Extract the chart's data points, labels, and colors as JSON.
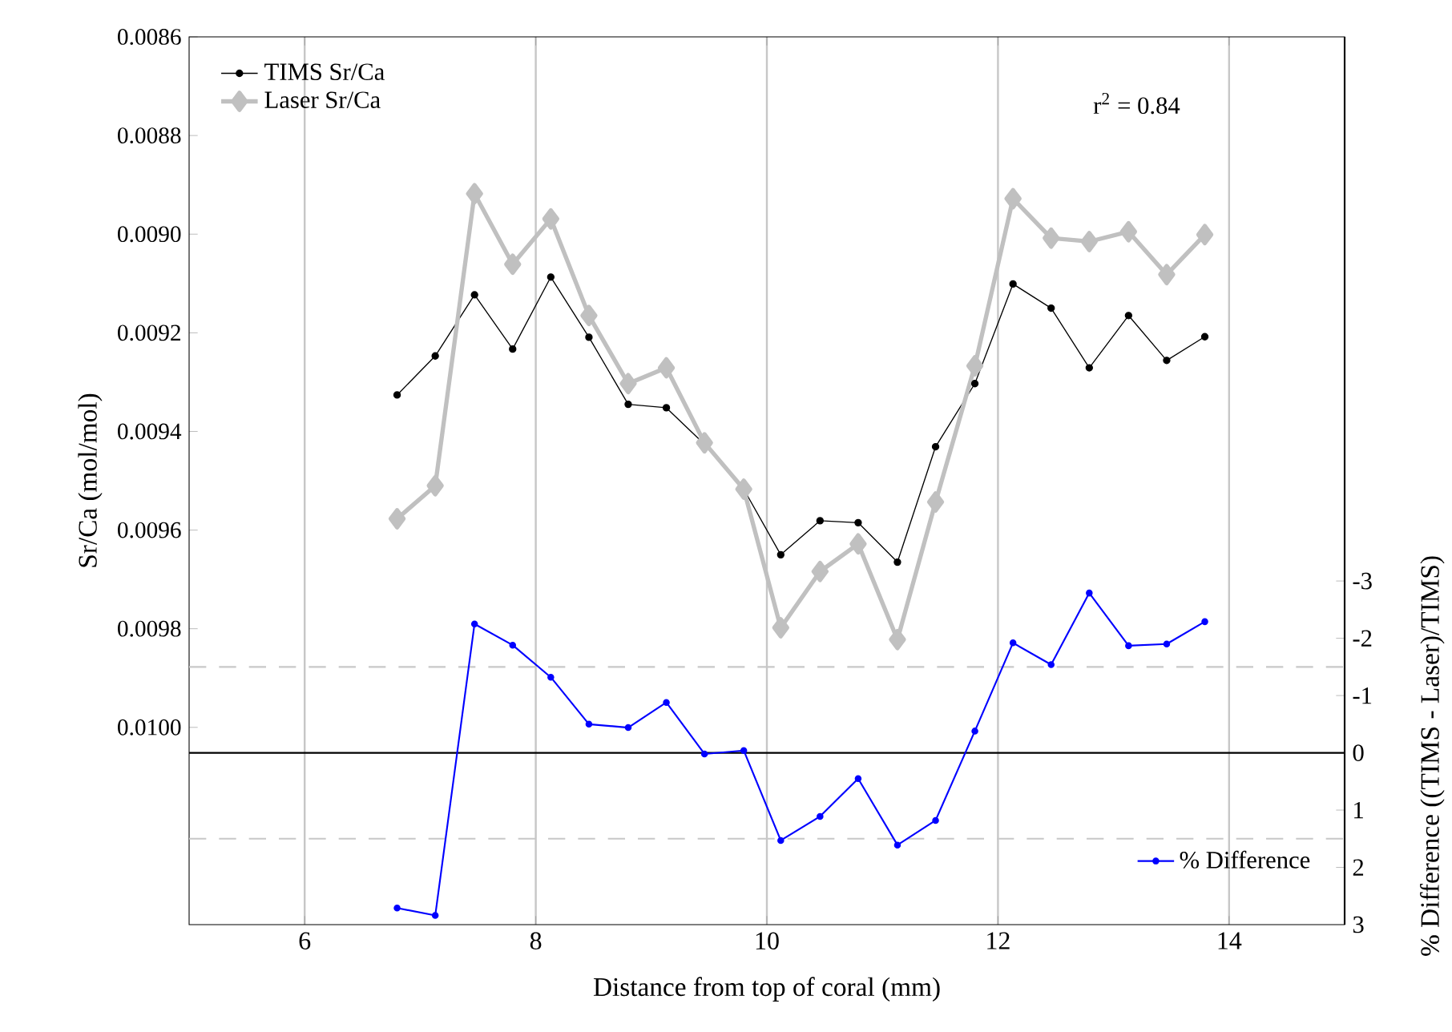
{
  "chart_data": {
    "type": "line",
    "xlabel": "Distance from top of coral (mm)",
    "ylabel": "Sr/Ca (mol/mol)",
    "y2label": "% Difference ((TIMS - Laser)/TIMS)",
    "annotations": [
      "r$^{2}$ = 0.84"
    ],
    "x": [
      6.8,
      7.13,
      7.47,
      7.8,
      8.13,
      8.46,
      8.8,
      9.13,
      9.46,
      9.8,
      10.12,
      10.46,
      10.79,
      11.13,
      11.46,
      11.8,
      12.13,
      12.46,
      12.79,
      13.13,
      13.46,
      13.79
    ],
    "series": [
      {
        "name": "TIMS Sr/Ca",
        "color": "#000000",
        "marker": "circle",
        "values": [
          0.009326,
          0.009247,
          0.009123,
          0.009233,
          0.009087,
          0.009209,
          0.009345,
          0.009352,
          0.009426,
          0.009517,
          0.00965,
          0.009581,
          0.009585,
          0.009665,
          0.009431,
          0.009303,
          0.009101,
          0.00915,
          0.009271,
          0.009165,
          0.009256,
          0.009208
        ]
      },
      {
        "name": "Laser Sr/Ca",
        "color": "#c0c0c0",
        "marker": "diamond",
        "values": [
          0.009577,
          0.00951,
          0.008918,
          0.009061,
          0.008969,
          0.009165,
          0.009303,
          0.009271,
          0.009423,
          0.009517,
          0.009798,
          0.009684,
          0.009628,
          0.009822,
          0.009543,
          0.009267,
          0.008928,
          0.009008,
          0.009015,
          0.008995,
          0.009082,
          0.009001
        ]
      },
      {
        "name": "% Difference",
        "color": "#0000ff",
        "marker": "circle",
        "axis": "y2",
        "values": [
          2.71,
          2.84,
          -2.25,
          -1.88,
          -1.32,
          -0.5,
          -0.44,
          -0.88,
          0.02,
          -0.04,
          1.53,
          1.11,
          0.45,
          1.61,
          1.18,
          -0.38,
          -1.92,
          -1.54,
          -2.79,
          -1.87,
          -1.9,
          -2.29
        ]
      }
    ],
    "xlim": [
      5,
      15
    ],
    "xticks": [
      6,
      8,
      10,
      12,
      14
    ],
    "ylim": [
      0.0104,
      0.0086
    ],
    "yticks": [
      0.0086,
      0.0088,
      {
        "value": 0.009,
        "label": "0.0090"
      },
      0.0092,
      0.0094,
      0.0096,
      0.0098,
      {
        "value": 0.01,
        "label": "0.0100"
      }
    ],
    "y2lim": [
      3,
      -12.5
    ],
    "y2ticks": [
      -3,
      -2,
      -1,
      0,
      1,
      2,
      3
    ],
    "ref_lines": [
      {
        "axis": "y2",
        "value": 0,
        "color": "#000000",
        "line_style": "solid"
      },
      {
        "axis": "y2",
        "value": -1.5,
        "color": "#c8c8c8",
        "line_style": "dashed"
      },
      {
        "axis": "y2",
        "value": 1.5,
        "color": "#c8c8c8",
        "line_style": "dashed"
      }
    ],
    "grid": "x",
    "legend": "top left"
  }
}
